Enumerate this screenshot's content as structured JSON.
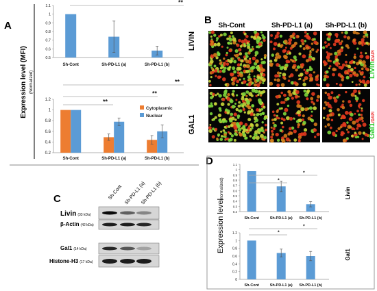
{
  "panels": {
    "a_label": "A",
    "b_label": "B",
    "c_label": "C",
    "d_label": "D"
  },
  "panel_a": {
    "ylabel": "Expression level (MFI)",
    "ylabel_sub": "(Normalized)",
    "livin_side": "LIVIN",
    "gal1_side": "GAL1"
  },
  "panel_b": {
    "columns": [
      "Sh-Cont",
      "Sh-PD-L1 (a)",
      "Sh-PD-L1 (b)"
    ],
    "row1_label_main": "Livin",
    "row1_label_sub": "/DAPI",
    "row2_label_main": "Gal1",
    "row2_label_sub": "/DAPI"
  },
  "panel_c": {
    "columns": [
      "Sh-Cont",
      "Sh-PD-L1 (a)",
      "Sh-PD-L1 (b)"
    ],
    "rows": [
      {
        "name": "Livin",
        "kda": "(33 kDa)"
      },
      {
        "name": "β-Actin",
        "kda": "(42 kDa)"
      },
      {
        "name": "Gal1",
        "kda": "(14 kDa)"
      },
      {
        "name": "Histone-H3",
        "kda": "(17 kDa)"
      }
    ]
  },
  "panel_d": {
    "ylabel": "Expression level",
    "ylabel_sub": "(normalized)",
    "livin_side": "Livin",
    "gal1_side": "Gal1"
  },
  "colors": {
    "blue": "#5b9bd5",
    "orange": "#ed7d31",
    "green": "#33cc33",
    "red": "#ee2222"
  },
  "chart_data": [
    {
      "id": "a-livin",
      "type": "bar",
      "categories": [
        "Sh-Cont",
        "Sh-PD-L1 (a)",
        "Sh-PD-L1 (b)"
      ],
      "values": [
        1.0,
        0.74,
        0.58
      ],
      "errors": [
        0.0,
        0.18,
        0.05
      ],
      "ylim": [
        0.5,
        1.1
      ],
      "yticks": [
        "0.5",
        "0.6",
        "0.7",
        "0.8",
        "0.9",
        "1",
        "1.1"
      ],
      "significance": [
        "**"
      ]
    },
    {
      "id": "a-gal1",
      "type": "bar",
      "categories": [
        "Sh-Cont",
        "Sh-PD-L1 (a)",
        "Sh-PD-L1 (b)"
      ],
      "series": [
        {
          "name": "Cytoplasmic",
          "values": [
            1.0,
            0.49,
            0.44
          ],
          "errors": [
            0.0,
            0.06,
            0.08
          ]
        },
        {
          "name": "Nuclear",
          "values": [
            1.0,
            0.78,
            0.6
          ],
          "errors": [
            0.0,
            0.07,
            0.12
          ]
        }
      ],
      "ylim": [
        0.2,
        1.2
      ],
      "yticks": [
        "0.2",
        "0.4",
        "0.6",
        "0.8",
        "1",
        "1.2"
      ],
      "significance": [
        "**",
        "**",
        "**"
      ],
      "legend": "top-right"
    },
    {
      "id": "d-livin",
      "type": "bar",
      "categories": [
        "Sh-Cont",
        "Sh-PD-L1 (a)",
        "Sh-PD-L1 (b)"
      ],
      "values": [
        0.97,
        0.68,
        0.34
      ],
      "errors": [
        0.0,
        0.1,
        0.05
      ],
      "ylim": [
        0.2,
        1.1
      ],
      "yticks": [
        "0.2",
        "0.3",
        "0.4",
        "0.5",
        "0.6",
        "0.7",
        "0.8",
        "0.9",
        "1",
        "1.1"
      ],
      "significance": [
        "*",
        "*"
      ]
    },
    {
      "id": "d-gal1",
      "type": "bar",
      "categories": [
        "Sh-Cont",
        "Sh-PD-L1 (a)",
        "Sh-PD-L1 (b)"
      ],
      "values": [
        1.0,
        0.68,
        0.6
      ],
      "errors": [
        0.0,
        0.1,
        0.12
      ],
      "ylim": [
        0,
        1.2
      ],
      "yticks": [
        "0",
        "0.2",
        "0.4",
        "0.6",
        "0.8",
        "1",
        "1.2"
      ],
      "significance": [
        "*",
        "*"
      ]
    }
  ]
}
